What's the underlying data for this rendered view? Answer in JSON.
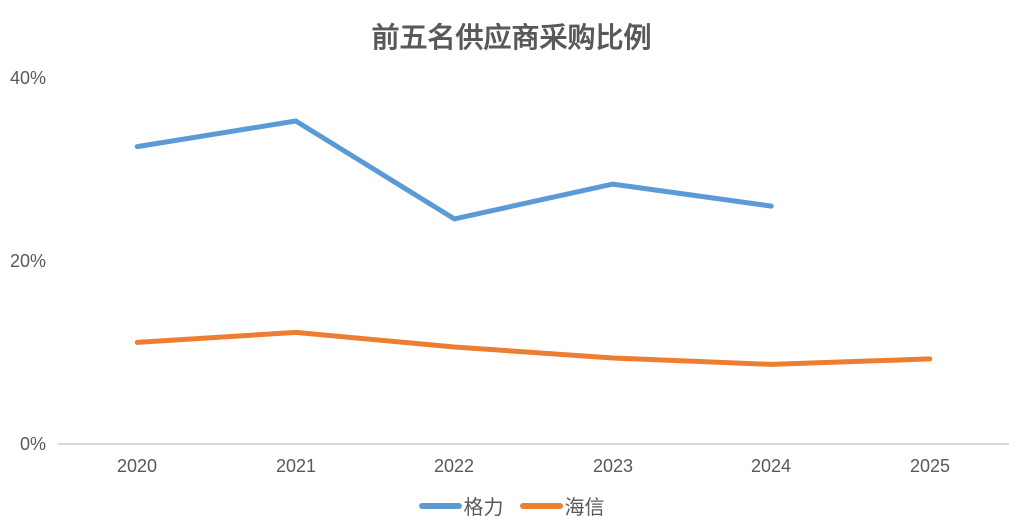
{
  "chart_data": {
    "type": "line",
    "title": "前五名供应商采购比例",
    "categories": [
      "2020",
      "2021",
      "2022",
      "2023",
      "2024",
      "2025"
    ],
    "series": [
      {
        "name": "格力",
        "color": "#5B9BD5",
        "values": [
          32.5,
          35.3,
          24.6,
          28.4,
          26.0,
          null
        ]
      },
      {
        "name": "海信",
        "color": "#ED7D31",
        "values": [
          11.1,
          12.2,
          10.6,
          9.4,
          8.7,
          9.3
        ]
      }
    ],
    "ylabel": "",
    "xlabel": "",
    "ylim": [
      0,
      40
    ],
    "y_ticks": [
      "0%",
      "20%",
      "40%"
    ],
    "grid": false,
    "legend_position": "bottom",
    "axis_color": "#d9d9d9",
    "text_color": "#595959"
  }
}
